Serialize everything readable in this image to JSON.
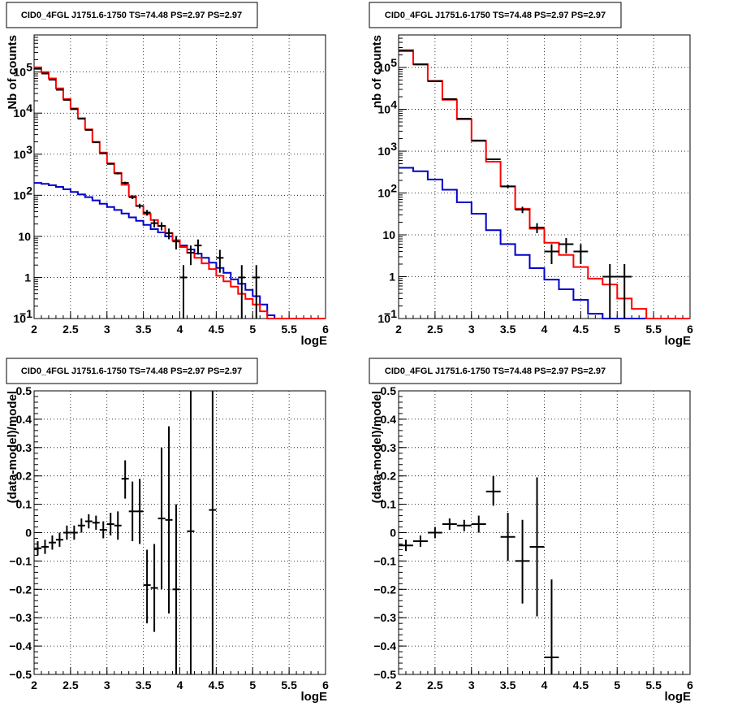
{
  "chart_data": [
    {
      "type": "line",
      "title": "CID0_4FGL J1751.6-1750 TS=74.48 PS=2.97 PS=2.97",
      "xlabel": "logE",
      "ylabel": "Nb of counts",
      "xlim": [
        2,
        6
      ],
      "ylim": [
        0.1,
        800000
      ],
      "yscale": "log",
      "grid": true,
      "xticks": [
        "2",
        "2.5",
        "3",
        "3.5",
        "4",
        "4.5",
        "5",
        "5.5",
        "6"
      ],
      "yticks": [
        {
          "value": 0.1,
          "base": "10",
          "exp": "−1"
        },
        {
          "value": 1,
          "base": "1",
          "exp": ""
        },
        {
          "value": 10,
          "base": "10",
          "exp": ""
        },
        {
          "value": 100,
          "base": "10",
          "exp": "2"
        },
        {
          "value": 1000,
          "base": "10",
          "exp": "3"
        },
        {
          "value": 10000,
          "base": "10",
          "exp": "4"
        },
        {
          "value": 100000,
          "base": "10",
          "exp": "5"
        }
      ],
      "bin_edges": [
        2.0,
        2.1,
        2.2,
        2.3,
        2.4,
        2.5,
        2.6,
        2.7,
        2.8,
        2.9,
        3.0,
        3.1,
        3.2,
        3.3,
        3.4,
        3.5,
        3.6,
        3.7,
        3.8,
        3.9,
        4.0,
        4.1,
        4.2,
        4.3,
        4.4,
        4.5,
        4.6,
        4.7,
        4.8,
        4.9,
        5.0,
        5.1,
        5.2,
        5.3,
        5.4,
        5.5,
        5.6,
        5.7,
        5.8,
        5.9,
        6.0
      ],
      "series": [
        {
          "color": "#ff0000",
          "values": [
            130000,
            100000,
            70000,
            40000,
            22000,
            13000,
            7500,
            4000,
            2000,
            1100,
            600,
            350,
            180,
            95,
            55,
            35,
            25,
            18,
            12,
            8,
            5.5,
            4,
            3,
            2.2,
            1.6,
            1.1,
            0.8,
            0.6,
            0.4,
            0.3,
            0.22,
            0.15,
            0.1,
            0.1,
            0.1,
            0.1,
            0.1,
            0.1,
            0.1,
            0.1
          ]
        },
        {
          "color": "#0000cc",
          "values": [
            200,
            190,
            175,
            160,
            140,
            120,
            105,
            90,
            75,
            62,
            52,
            44,
            36,
            29,
            24,
            19,
            15,
            12.5,
            10,
            8,
            6,
            4.8,
            3.8,
            3,
            2.3,
            1.7,
            1.3,
            0.9,
            0.7,
            0.5,
            0.35,
            0.22,
            0.12,
            0.1,
            0.1,
            0.1,
            0.1,
            0.1,
            0.1,
            0.1
          ]
        }
      ],
      "points": [
        {
          "x": 2.05,
          "y": 120000,
          "ylo": 119000,
          "yhi": 121000,
          "xerr": 0.05
        },
        {
          "x": 2.15,
          "y": 92000,
          "ylo": 91000,
          "yhi": 93000,
          "xerr": 0.05
        },
        {
          "x": 2.25,
          "y": 65000,
          "ylo": 64300,
          "yhi": 65700,
          "xerr": 0.05
        },
        {
          "x": 2.35,
          "y": 37000,
          "ylo": 36500,
          "yhi": 37500,
          "xerr": 0.05
        },
        {
          "x": 2.45,
          "y": 21000,
          "ylo": 20700,
          "yhi": 21300,
          "xerr": 0.05
        },
        {
          "x": 2.55,
          "y": 12500,
          "ylo": 12300,
          "yhi": 12700,
          "xerr": 0.05
        },
        {
          "x": 2.65,
          "y": 7300,
          "ylo": 7150,
          "yhi": 7450,
          "xerr": 0.05
        },
        {
          "x": 2.75,
          "y": 3900,
          "ylo": 3800,
          "yhi": 4000,
          "xerr": 0.05
        },
        {
          "x": 2.85,
          "y": 1950,
          "ylo": 1900,
          "yhi": 2000,
          "xerr": 0.05
        },
        {
          "x": 2.95,
          "y": 1050,
          "ylo": 1020,
          "yhi": 1080,
          "xerr": 0.05
        },
        {
          "x": 3.05,
          "y": 580,
          "ylo": 556,
          "yhi": 604,
          "xerr": 0.05
        },
        {
          "x": 3.15,
          "y": 340,
          "ylo": 322,
          "yhi": 358,
          "xerr": 0.05
        },
        {
          "x": 3.25,
          "y": 200,
          "ylo": 186,
          "yhi": 214,
          "xerr": 0.05
        },
        {
          "x": 3.35,
          "y": 90,
          "ylo": 81,
          "yhi": 99,
          "xerr": 0.05
        },
        {
          "x": 3.45,
          "y": 55,
          "ylo": 48,
          "yhi": 62,
          "xerr": 0.05
        },
        {
          "x": 3.55,
          "y": 38,
          "ylo": 32,
          "yhi": 44,
          "xerr": 0.05
        },
        {
          "x": 3.65,
          "y": 21,
          "ylo": 16.5,
          "yhi": 25.5,
          "xerr": 0.05
        },
        {
          "x": 3.75,
          "y": 18,
          "ylo": 14,
          "yhi": 22,
          "xerr": 0.05
        },
        {
          "x": 3.85,
          "y": 12,
          "ylo": 8.5,
          "yhi": 15.5,
          "xerr": 0.05
        },
        {
          "x": 3.95,
          "y": 7.5,
          "ylo": 4.8,
          "yhi": 10.2,
          "xerr": 0.05
        },
        {
          "x": 4.05,
          "y": 1,
          "ylo": 0.1,
          "yhi": 2,
          "xerr": 0.05
        },
        {
          "x": 4.15,
          "y": 4,
          "ylo": 2,
          "yhi": 6,
          "xerr": 0.05
        },
        {
          "x": 4.25,
          "y": 6,
          "ylo": 3.6,
          "yhi": 8.4,
          "xerr": 0.05
        },
        {
          "x": 4.55,
          "y": 3,
          "ylo": 1.3,
          "yhi": 4.7,
          "xerr": 0.05
        },
        {
          "x": 4.85,
          "y": 1,
          "ylo": 0.1,
          "yhi": 2,
          "xerr": 0.05
        },
        {
          "x": 5.05,
          "y": 1,
          "ylo": 0.1,
          "yhi": 2,
          "xerr": 0.05
        }
      ]
    },
    {
      "type": "line",
      "title": "CID0_4FGL J1751.6-1750 TS=74.48 PS=2.97 PS=2.97",
      "xlabel": "logE",
      "ylabel": "nb of counts",
      "xlim": [
        2,
        6
      ],
      "ylim": [
        0.1,
        600000
      ],
      "yscale": "log",
      "grid": true,
      "xticks": [
        "2",
        "2.5",
        "3",
        "3.5",
        "4",
        "4.5",
        "5",
        "5.5",
        "6"
      ],
      "yticks": [
        {
          "value": 0.1,
          "base": "10",
          "exp": "−1"
        },
        {
          "value": 1,
          "base": "1",
          "exp": ""
        },
        {
          "value": 10,
          "base": "10",
          "exp": ""
        },
        {
          "value": 100,
          "base": "10",
          "exp": "2"
        },
        {
          "value": 1000,
          "base": "10",
          "exp": "3"
        },
        {
          "value": 10000,
          "base": "10",
          "exp": "4"
        },
        {
          "value": 100000,
          "base": "10",
          "exp": "5"
        }
      ],
      "bin_edges": [
        2.0,
        2.2,
        2.4,
        2.6,
        2.8,
        3.0,
        3.2,
        3.4,
        3.6,
        3.8,
        4.0,
        4.2,
        4.4,
        4.6,
        4.8,
        5.0,
        5.2,
        5.4,
        5.6,
        5.8,
        6.0
      ],
      "series": [
        {
          "color": "#ff0000",
          "values": [
            260000,
            120000,
            48000,
            17000,
            5800,
            1750,
            560,
            145,
            42,
            14,
            6.5,
            3.3,
            1.7,
            0.9,
            0.65,
            0.3,
            0.17,
            0.1,
            0.1,
            0.1
          ]
        },
        {
          "color": "#0000cc",
          "values": [
            400,
            330,
            210,
            120,
            60,
            32,
            13,
            6,
            3.3,
            1.6,
            0.85,
            0.5,
            0.28,
            0.13,
            0.1,
            0.1,
            0.1,
            0.1,
            0.1,
            0.1
          ]
        }
      ],
      "points": [
        {
          "x": 2.1,
          "y": 250000,
          "ylo": 249000,
          "yhi": 251000,
          "xerr": 0.1
        },
        {
          "x": 2.3,
          "y": 118000,
          "ylo": 117300,
          "yhi": 118700,
          "xerr": 0.1
        },
        {
          "x": 2.5,
          "y": 47000,
          "ylo": 46500,
          "yhi": 47500,
          "xerr": 0.1
        },
        {
          "x": 2.7,
          "y": 17500,
          "ylo": 17300,
          "yhi": 17700,
          "xerr": 0.1
        },
        {
          "x": 2.9,
          "y": 6000,
          "ylo": 5900,
          "yhi": 6100,
          "xerr": 0.1
        },
        {
          "x": 3.1,
          "y": 1800,
          "ylo": 1750,
          "yhi": 1850,
          "xerr": 0.1
        },
        {
          "x": 3.3,
          "y": 640,
          "ylo": 610,
          "yhi": 670,
          "xerr": 0.1
        },
        {
          "x": 3.5,
          "y": 143,
          "ylo": 130,
          "yhi": 156,
          "xerr": 0.1
        },
        {
          "x": 3.7,
          "y": 40,
          "ylo": 33,
          "yhi": 47,
          "xerr": 0.1
        },
        {
          "x": 3.9,
          "y": 15,
          "ylo": 11,
          "yhi": 19,
          "xerr": 0.1
        },
        {
          "x": 4.1,
          "y": 4,
          "ylo": 2,
          "yhi": 6,
          "xerr": 0.1
        },
        {
          "x": 4.3,
          "y": 6,
          "ylo": 3.6,
          "yhi": 8.4,
          "xerr": 0.1
        },
        {
          "x": 4.5,
          "y": 4,
          "ylo": 2,
          "yhi": 6,
          "xerr": 0.1
        },
        {
          "x": 4.9,
          "y": 1,
          "ylo": 0.1,
          "yhi": 2,
          "xerr": 0.1
        },
        {
          "x": 5.1,
          "y": 1,
          "ylo": 0.1,
          "yhi": 2,
          "xerr": 0.1
        }
      ]
    },
    {
      "type": "scatter",
      "title": "CID0_4FGL J1751.6-1750 TS=74.48 PS=2.97 PS=2.97",
      "xlabel": "logE",
      "ylabel": "(data-model)/model",
      "xlim": [
        2,
        6
      ],
      "ylim": [
        -0.5,
        0.5
      ],
      "grid": true,
      "xticks": [
        "2",
        "2.5",
        "3",
        "3.5",
        "4",
        "4.5",
        "5",
        "5.5",
        "6"
      ],
      "yticks": [
        "−0.5",
        "−0.4",
        "−0.3",
        "−0.2",
        "−0.1",
        "0",
        "0.1",
        "0.2",
        "0.3",
        "0.4",
        "0.5"
      ],
      "points": [
        {
          "x": 2.05,
          "y": -0.055,
          "ylo": -0.08,
          "yhi": -0.03,
          "xerr": 0.05
        },
        {
          "x": 2.15,
          "y": -0.05,
          "ylo": -0.075,
          "yhi": -0.025,
          "xerr": 0.05
        },
        {
          "x": 2.25,
          "y": -0.035,
          "ylo": -0.06,
          "yhi": -0.01,
          "xerr": 0.05
        },
        {
          "x": 2.35,
          "y": -0.025,
          "ylo": -0.05,
          "yhi": 0.0,
          "xerr": 0.05
        },
        {
          "x": 2.45,
          "y": 0.0,
          "ylo": -0.025,
          "yhi": 0.025,
          "xerr": 0.05
        },
        {
          "x": 2.55,
          "y": 0.0,
          "ylo": -0.025,
          "yhi": 0.025,
          "xerr": 0.05
        },
        {
          "x": 2.65,
          "y": 0.025,
          "ylo": 0.0,
          "yhi": 0.05,
          "xerr": 0.05
        },
        {
          "x": 2.75,
          "y": 0.04,
          "ylo": 0.015,
          "yhi": 0.065,
          "xerr": 0.05
        },
        {
          "x": 2.85,
          "y": 0.035,
          "ylo": 0.01,
          "yhi": 0.06,
          "xerr": 0.05
        },
        {
          "x": 2.95,
          "y": 0.01,
          "ylo": -0.02,
          "yhi": 0.04,
          "xerr": 0.05
        },
        {
          "x": 3.05,
          "y": 0.03,
          "ylo": -0.01,
          "yhi": 0.07,
          "xerr": 0.05
        },
        {
          "x": 3.15,
          "y": 0.025,
          "ylo": -0.025,
          "yhi": 0.075,
          "xerr": 0.05
        },
        {
          "x": 3.25,
          "y": 0.19,
          "ylo": 0.12,
          "yhi": 0.255,
          "xerr": 0.05
        },
        {
          "x": 3.35,
          "y": 0.075,
          "ylo": -0.03,
          "yhi": 0.18,
          "xerr": 0.05
        },
        {
          "x": 3.45,
          "y": 0.075,
          "ylo": -0.04,
          "yhi": 0.19,
          "xerr": 0.05
        },
        {
          "x": 3.55,
          "y": -0.185,
          "ylo": -0.32,
          "yhi": -0.06,
          "xerr": 0.05
        },
        {
          "x": 3.65,
          "y": -0.195,
          "ylo": -0.35,
          "yhi": -0.04,
          "xerr": 0.05
        },
        {
          "x": 3.75,
          "y": 0.05,
          "ylo": -0.2,
          "yhi": 0.3,
          "xerr": 0.05
        },
        {
          "x": 3.85,
          "y": 0.045,
          "ylo": -0.285,
          "yhi": 0.375,
          "xerr": 0.05
        },
        {
          "x": 3.95,
          "y": -0.2,
          "ylo": -0.5,
          "yhi": 0.1,
          "xerr": 0.05
        },
        {
          "x": 4.15,
          "y": 0.005,
          "ylo": -0.5,
          "yhi": 0.5,
          "xerr": 0.05
        },
        {
          "x": 4.45,
          "y": 0.08,
          "ylo": -0.5,
          "yhi": 0.5,
          "xerr": 0.05
        }
      ]
    },
    {
      "type": "scatter",
      "title": "CID0_4FGL J1751.6-1750 TS=74.48 PS=2.97 PS=2.97",
      "xlabel": "logE",
      "ylabel": "(data-model)/model",
      "xlim": [
        2,
        6
      ],
      "ylim": [
        -0.5,
        0.5
      ],
      "grid": true,
      "xticks": [
        "2",
        "2.5",
        "3",
        "3.5",
        "4",
        "4.5",
        "5",
        "5.5",
        "6"
      ],
      "yticks": [
        "−0.5",
        "−0.4",
        "−0.3",
        "−0.2",
        "−0.1",
        "0",
        "0.1",
        "0.2",
        "0.3",
        "0.4",
        "0.5"
      ],
      "points": [
        {
          "x": 2.1,
          "y": -0.045,
          "ylo": -0.065,
          "yhi": -0.025,
          "xerr": 0.1
        },
        {
          "x": 2.3,
          "y": -0.03,
          "ylo": -0.05,
          "yhi": -0.01,
          "xerr": 0.1
        },
        {
          "x": 2.5,
          "y": 0.0,
          "ylo": -0.02,
          "yhi": 0.02,
          "xerr": 0.1
        },
        {
          "x": 2.7,
          "y": 0.03,
          "ylo": 0.01,
          "yhi": 0.05,
          "xerr": 0.1
        },
        {
          "x": 2.9,
          "y": 0.025,
          "ylo": 0.005,
          "yhi": 0.045,
          "xerr": 0.1
        },
        {
          "x": 3.1,
          "y": 0.03,
          "ylo": 0.0,
          "yhi": 0.06,
          "xerr": 0.1
        },
        {
          "x": 3.3,
          "y": 0.145,
          "ylo": 0.095,
          "yhi": 0.2,
          "xerr": 0.1
        },
        {
          "x": 3.5,
          "y": -0.015,
          "ylo": -0.1,
          "yhi": 0.07,
          "xerr": 0.1
        },
        {
          "x": 3.7,
          "y": -0.1,
          "ylo": -0.25,
          "yhi": 0.045,
          "xerr": 0.1
        },
        {
          "x": 3.9,
          "y": -0.05,
          "ylo": -0.295,
          "yhi": 0.195,
          "xerr": 0.1
        },
        {
          "x": 4.1,
          "y": -0.44,
          "ylo": -0.5,
          "yhi": -0.165,
          "xerr": 0.1
        }
      ]
    }
  ]
}
